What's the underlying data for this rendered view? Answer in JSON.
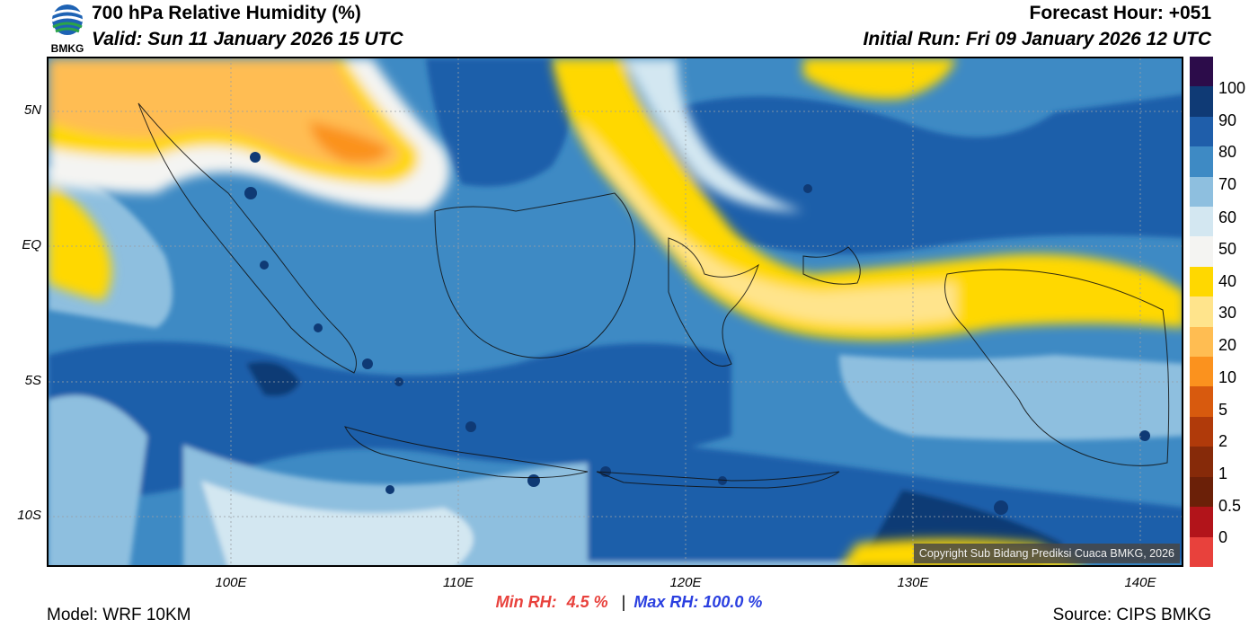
{
  "header": {
    "title": "700 hPa Relative Humidity (%)",
    "valid": "Valid: Sun 11 January 2026 15 UTC",
    "forecast_hour": "Forecast Hour: +051",
    "initial_run": "Initial Run: Fri 09 January 2026 12 UTC",
    "logo_text": "BMKG"
  },
  "map": {
    "copyright": "Copyright Sub Bidang Prediksi Cuaca BMKG, 2026",
    "lat_labels": [
      "5N",
      "EQ",
      "5S",
      "10S"
    ],
    "lon_labels": [
      "100E",
      "110E",
      "120E",
      "130E",
      "140E"
    ]
  },
  "colorbar": {
    "labels": [
      "100",
      "90",
      "80",
      "70",
      "60",
      "50",
      "40",
      "30",
      "20",
      "10",
      "5",
      "2",
      "1",
      "0.5",
      "0"
    ],
    "colors": [
      "#2c0c4a",
      "#0f3a75",
      "#1f5eaa",
      "#3e8ac4",
      "#8ebfdf",
      "#d3e7f1",
      "#f4f4f2",
      "#ffd800",
      "#ffe48c",
      "#ffbd52",
      "#fb921e",
      "#d85a0e",
      "#b03a0a",
      "#862a09",
      "#6b2008",
      "#b2141a",
      "#e8413c"
    ]
  },
  "stats": {
    "min_label": "Min RH:",
    "min_value": "4.5 %",
    "separator": "|",
    "max_label": "Max RH:",
    "max_value": "100.0 %"
  },
  "footer": {
    "model": "Model: WRF 10KM",
    "source": "Source: CIPS BMKG"
  }
}
